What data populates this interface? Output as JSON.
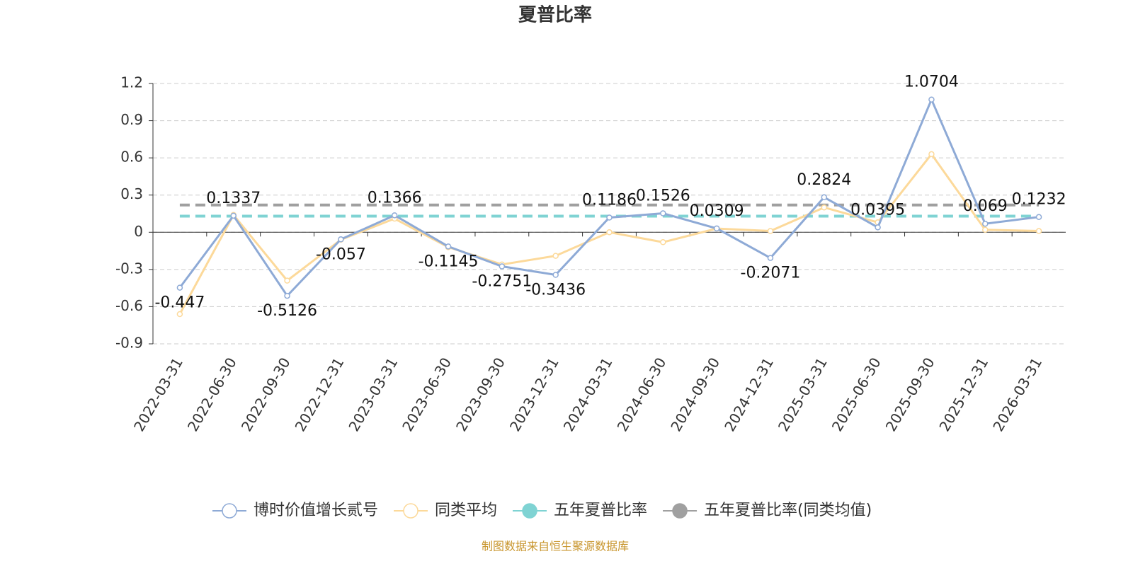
{
  "chart_data": {
    "type": "line",
    "title": "夏普比率",
    "categories": [
      "2022-03-31",
      "2022-06-30",
      "2022-09-30",
      "2022-12-31",
      "2023-03-31",
      "2023-06-30",
      "2023-09-30",
      "2023-12-31",
      "2024-03-31",
      "2024-06-30",
      "2024-09-30",
      "2024-12-31",
      "2025-03-31",
      "2025-06-30",
      "2025-09-30",
      "2025-12-31",
      "2026-03-31"
    ],
    "series": [
      {
        "name": "博时价值增长贰号",
        "color": "#8eaad6",
        "values": [
          -0.447,
          0.1337,
          -0.5126,
          -0.057,
          0.1366,
          -0.1145,
          -0.2751,
          -0.3436,
          0.1186,
          0.1526,
          0.0309,
          -0.2071,
          0.2824,
          0.0395,
          1.0704,
          0.069,
          0.1232
        ]
      },
      {
        "name": "同类平均",
        "color": "#fcd99a",
        "values": [
          -0.66,
          0.14,
          -0.39,
          -0.06,
          0.11,
          -0.12,
          -0.26,
          -0.19,
          0.0,
          -0.08,
          0.03,
          0.01,
          0.2,
          0.08,
          0.63,
          0.02,
          0.01
        ]
      }
    ],
    "reference_lines": [
      {
        "name": "五年夏普比率",
        "color": "#7fd3d3",
        "value": 0.13
      },
      {
        "name": "五年夏普比率(同类均值)",
        "color": "#a0a0a0",
        "value": 0.22
      }
    ],
    "ylim": [
      -0.9,
      1.2
    ],
    "yticks": [
      -0.9,
      -0.6,
      -0.3,
      0,
      0.3,
      0.6,
      0.9,
      1.2
    ],
    "grid": true,
    "legend": "bottom",
    "source": "制图数据来自恒生聚源数据库"
  }
}
